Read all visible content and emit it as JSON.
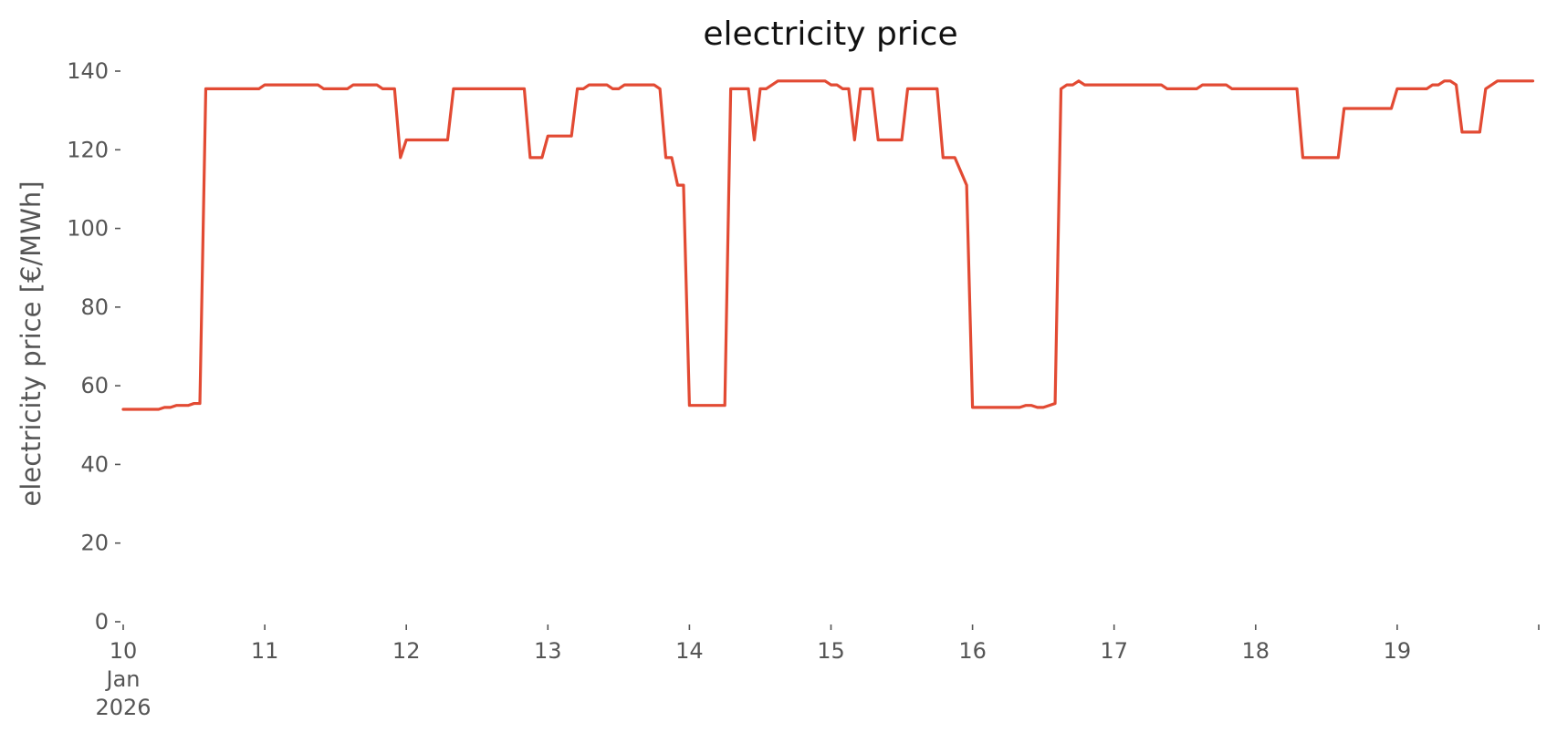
{
  "chart_data": {
    "type": "line",
    "title": "electricity price",
    "xlabel": "",
    "ylabel": "electricity price [€/MWh]",
    "ylim": [
      0,
      140
    ],
    "xlim": [
      "2026-01-10T00:00",
      "2026-01-19T23:00"
    ],
    "grid": false,
    "y_ticks": [
      0,
      20,
      40,
      60,
      80,
      100,
      120,
      140
    ],
    "x_ticks": [
      {
        "date": "2026-01-10",
        "label": [
          "10",
          "Jan",
          "2026"
        ]
      },
      {
        "date": "2026-01-11",
        "label": [
          "11"
        ]
      },
      {
        "date": "2026-01-12",
        "label": [
          "12"
        ]
      },
      {
        "date": "2026-01-13",
        "label": [
          "13"
        ]
      },
      {
        "date": "2026-01-14",
        "label": [
          "14"
        ]
      },
      {
        "date": "2026-01-15",
        "label": [
          "15"
        ]
      },
      {
        "date": "2026-01-16",
        "label": [
          "16"
        ]
      },
      {
        "date": "2026-01-17",
        "label": [
          "17"
        ]
      },
      {
        "date": "2026-01-18",
        "label": [
          "18"
        ]
      },
      {
        "date": "2026-01-19",
        "label": [
          "19"
        ]
      },
      {
        "date": "2026-01-20",
        "label": []
      }
    ],
    "series": [
      {
        "color": "#e24a33",
        "points": [
          [
            "2026-01-10T00:00",
            54.0
          ],
          [
            "2026-01-10T06:00",
            54.0
          ],
          [
            "2026-01-10T07:00",
            54.5
          ],
          [
            "2026-01-10T08:00",
            54.5
          ],
          [
            "2026-01-10T09:00",
            55.0
          ],
          [
            "2026-01-10T11:00",
            55.0
          ],
          [
            "2026-01-10T12:00",
            55.5
          ],
          [
            "2026-01-10T13:00",
            55.5
          ],
          [
            "2026-01-10T14:00",
            135.5
          ],
          [
            "2026-01-10T23:00",
            135.5
          ],
          [
            "2026-01-11T00:00",
            136.5
          ],
          [
            "2026-01-11T09:00",
            136.5
          ],
          [
            "2026-01-11T10:00",
            135.5
          ],
          [
            "2026-01-11T14:00",
            135.5
          ],
          [
            "2026-01-11T15:00",
            136.5
          ],
          [
            "2026-01-11T19:00",
            136.5
          ],
          [
            "2026-01-11T20:00",
            135.5
          ],
          [
            "2026-01-11T22:00",
            135.5
          ],
          [
            "2026-01-11T23:00",
            118.0
          ],
          [
            "2026-01-12T00:00",
            122.5
          ],
          [
            "2026-01-12T07:00",
            122.5
          ],
          [
            "2026-01-12T08:00",
            135.5
          ],
          [
            "2026-01-12T20:00",
            135.5
          ],
          [
            "2026-01-12T21:00",
            118.0
          ],
          [
            "2026-01-12T23:00",
            118.0
          ],
          [
            "2026-01-13T00:00",
            123.5
          ],
          [
            "2026-01-13T04:00",
            123.5
          ],
          [
            "2026-01-13T05:00",
            135.5
          ],
          [
            "2026-01-13T06:00",
            135.5
          ],
          [
            "2026-01-13T07:00",
            136.5
          ],
          [
            "2026-01-13T10:00",
            136.5
          ],
          [
            "2026-01-13T11:00",
            135.5
          ],
          [
            "2026-01-13T12:00",
            135.5
          ],
          [
            "2026-01-13T13:00",
            136.5
          ],
          [
            "2026-01-13T18:00",
            136.5
          ],
          [
            "2026-01-13T19:00",
            135.5
          ],
          [
            "2026-01-13T20:00",
            118.0
          ],
          [
            "2026-01-13T21:00",
            118.0
          ],
          [
            "2026-01-13T22:00",
            111.0
          ],
          [
            "2026-01-13T23:00",
            111.0
          ],
          [
            "2026-01-14T00:00",
            55.0
          ],
          [
            "2026-01-14T06:00",
            55.0
          ],
          [
            "2026-01-14T07:00",
            135.5
          ],
          [
            "2026-01-14T10:00",
            135.5
          ],
          [
            "2026-01-14T11:00",
            122.5
          ],
          [
            "2026-01-14T12:00",
            135.5
          ],
          [
            "2026-01-14T13:00",
            135.5
          ],
          [
            "2026-01-14T15:00",
            137.5
          ],
          [
            "2026-01-14T23:00",
            137.5
          ],
          [
            "2026-01-15T00:00",
            136.5
          ],
          [
            "2026-01-15T01:00",
            136.5
          ],
          [
            "2026-01-15T02:00",
            135.5
          ],
          [
            "2026-01-15T03:00",
            135.5
          ],
          [
            "2026-01-15T04:00",
            122.5
          ],
          [
            "2026-01-15T05:00",
            135.5
          ],
          [
            "2026-01-15T07:00",
            135.5
          ],
          [
            "2026-01-15T08:00",
            122.5
          ],
          [
            "2026-01-15T12:00",
            122.5
          ],
          [
            "2026-01-15T13:00",
            135.5
          ],
          [
            "2026-01-15T18:00",
            135.5
          ],
          [
            "2026-01-15T19:00",
            118.0
          ],
          [
            "2026-01-15T21:00",
            118.0
          ],
          [
            "2026-01-15T23:00",
            111.0
          ],
          [
            "2026-01-16T00:00",
            54.5
          ],
          [
            "2026-01-16T08:00",
            54.5
          ],
          [
            "2026-01-16T09:00",
            55.0
          ],
          [
            "2026-01-16T10:00",
            55.0
          ],
          [
            "2026-01-16T11:00",
            54.5
          ],
          [
            "2026-01-16T12:00",
            54.5
          ],
          [
            "2026-01-16T13:00",
            55.0
          ],
          [
            "2026-01-16T14:00",
            55.5
          ],
          [
            "2026-01-16T15:00",
            135.5
          ],
          [
            "2026-01-16T16:00",
            136.5
          ],
          [
            "2026-01-16T17:00",
            136.5
          ],
          [
            "2026-01-16T18:00",
            137.5
          ],
          [
            "2026-01-16T19:00",
            136.5
          ],
          [
            "2026-01-17T08:00",
            136.5
          ],
          [
            "2026-01-17T09:00",
            135.5
          ],
          [
            "2026-01-17T14:00",
            135.5
          ],
          [
            "2026-01-17T15:00",
            136.5
          ],
          [
            "2026-01-17T19:00",
            136.5
          ],
          [
            "2026-01-17T20:00",
            135.5
          ],
          [
            "2026-01-18T07:00",
            135.5
          ],
          [
            "2026-01-18T08:00",
            118.0
          ],
          [
            "2026-01-18T14:00",
            118.0
          ],
          [
            "2026-01-18T15:00",
            130.5
          ],
          [
            "2026-01-18T23:00",
            130.5
          ],
          [
            "2026-01-19T00:00",
            135.5
          ],
          [
            "2026-01-19T05:00",
            135.5
          ],
          [
            "2026-01-19T06:00",
            136.5
          ],
          [
            "2026-01-19T07:00",
            136.5
          ],
          [
            "2026-01-19T08:00",
            137.5
          ],
          [
            "2026-01-19T09:00",
            137.5
          ],
          [
            "2026-01-19T10:00",
            136.5
          ],
          [
            "2026-01-19T11:00",
            124.5
          ],
          [
            "2026-01-19T14:00",
            124.5
          ],
          [
            "2026-01-19T15:00",
            135.5
          ],
          [
            "2026-01-19T17:00",
            137.5
          ],
          [
            "2026-01-19T23:00",
            137.5
          ]
        ]
      }
    ]
  }
}
